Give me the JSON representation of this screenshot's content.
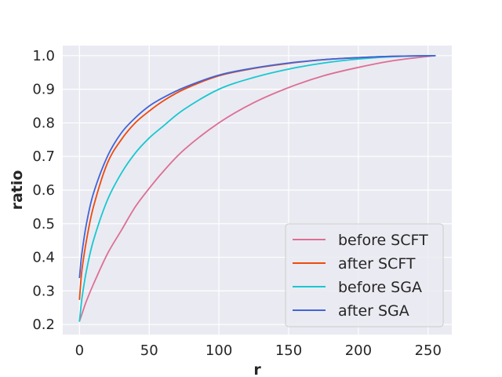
{
  "chart_data": {
    "type": "line",
    "title": "",
    "xlabel": "r",
    "ylabel": "ratio",
    "xlim": [
      -12,
      267
    ],
    "ylim": [
      0.17,
      1.03
    ],
    "xticks": [
      0,
      50,
      100,
      150,
      200,
      250
    ],
    "xtick_labels": [
      "0",
      "50",
      "100",
      "150",
      "200",
      "250"
    ],
    "yticks": [
      0.2,
      0.3,
      0.4,
      0.5,
      0.6,
      0.7,
      0.8,
      0.9,
      1.0
    ],
    "ytick_labels": [
      "0.2",
      "0.3",
      "0.4",
      "0.5",
      "0.6",
      "0.7",
      "0.8",
      "0.9",
      "1.0"
    ],
    "grid": true,
    "legend_position": "lower-right",
    "x": [
      0,
      1,
      2,
      5,
      10,
      20,
      30,
      40,
      50,
      60,
      75,
      100,
      125,
      150,
      175,
      200,
      225,
      255
    ],
    "series": [
      {
        "name": "before SCFT",
        "color": "#dd6f94",
        "values": [
          0.21,
          0.222,
          0.234,
          0.27,
          0.32,
          0.41,
          0.48,
          0.55,
          0.605,
          0.655,
          0.72,
          0.8,
          0.86,
          0.905,
          0.94,
          0.965,
          0.985,
          1.0
        ]
      },
      {
        "name": "after SCFT",
        "color": "#ee4a0c",
        "values": [
          0.275,
          0.33,
          0.37,
          0.45,
          0.55,
          0.68,
          0.75,
          0.8,
          0.835,
          0.865,
          0.9,
          0.94,
          0.962,
          0.977,
          0.988,
          0.994,
          0.998,
          1.0
        ]
      },
      {
        "name": "before SGA",
        "color": "#17c8d0",
        "values": [
          0.21,
          0.25,
          0.285,
          0.36,
          0.45,
          0.57,
          0.65,
          0.71,
          0.755,
          0.79,
          0.84,
          0.9,
          0.935,
          0.96,
          0.978,
          0.99,
          0.997,
          1.0
        ]
      },
      {
        "name": "after SGA",
        "color": "#4364d6",
        "values": [
          0.34,
          0.385,
          0.42,
          0.5,
          0.59,
          0.7,
          0.77,
          0.815,
          0.85,
          0.875,
          0.905,
          0.942,
          0.963,
          0.978,
          0.988,
          0.994,
          0.998,
          1.0
        ]
      }
    ]
  }
}
